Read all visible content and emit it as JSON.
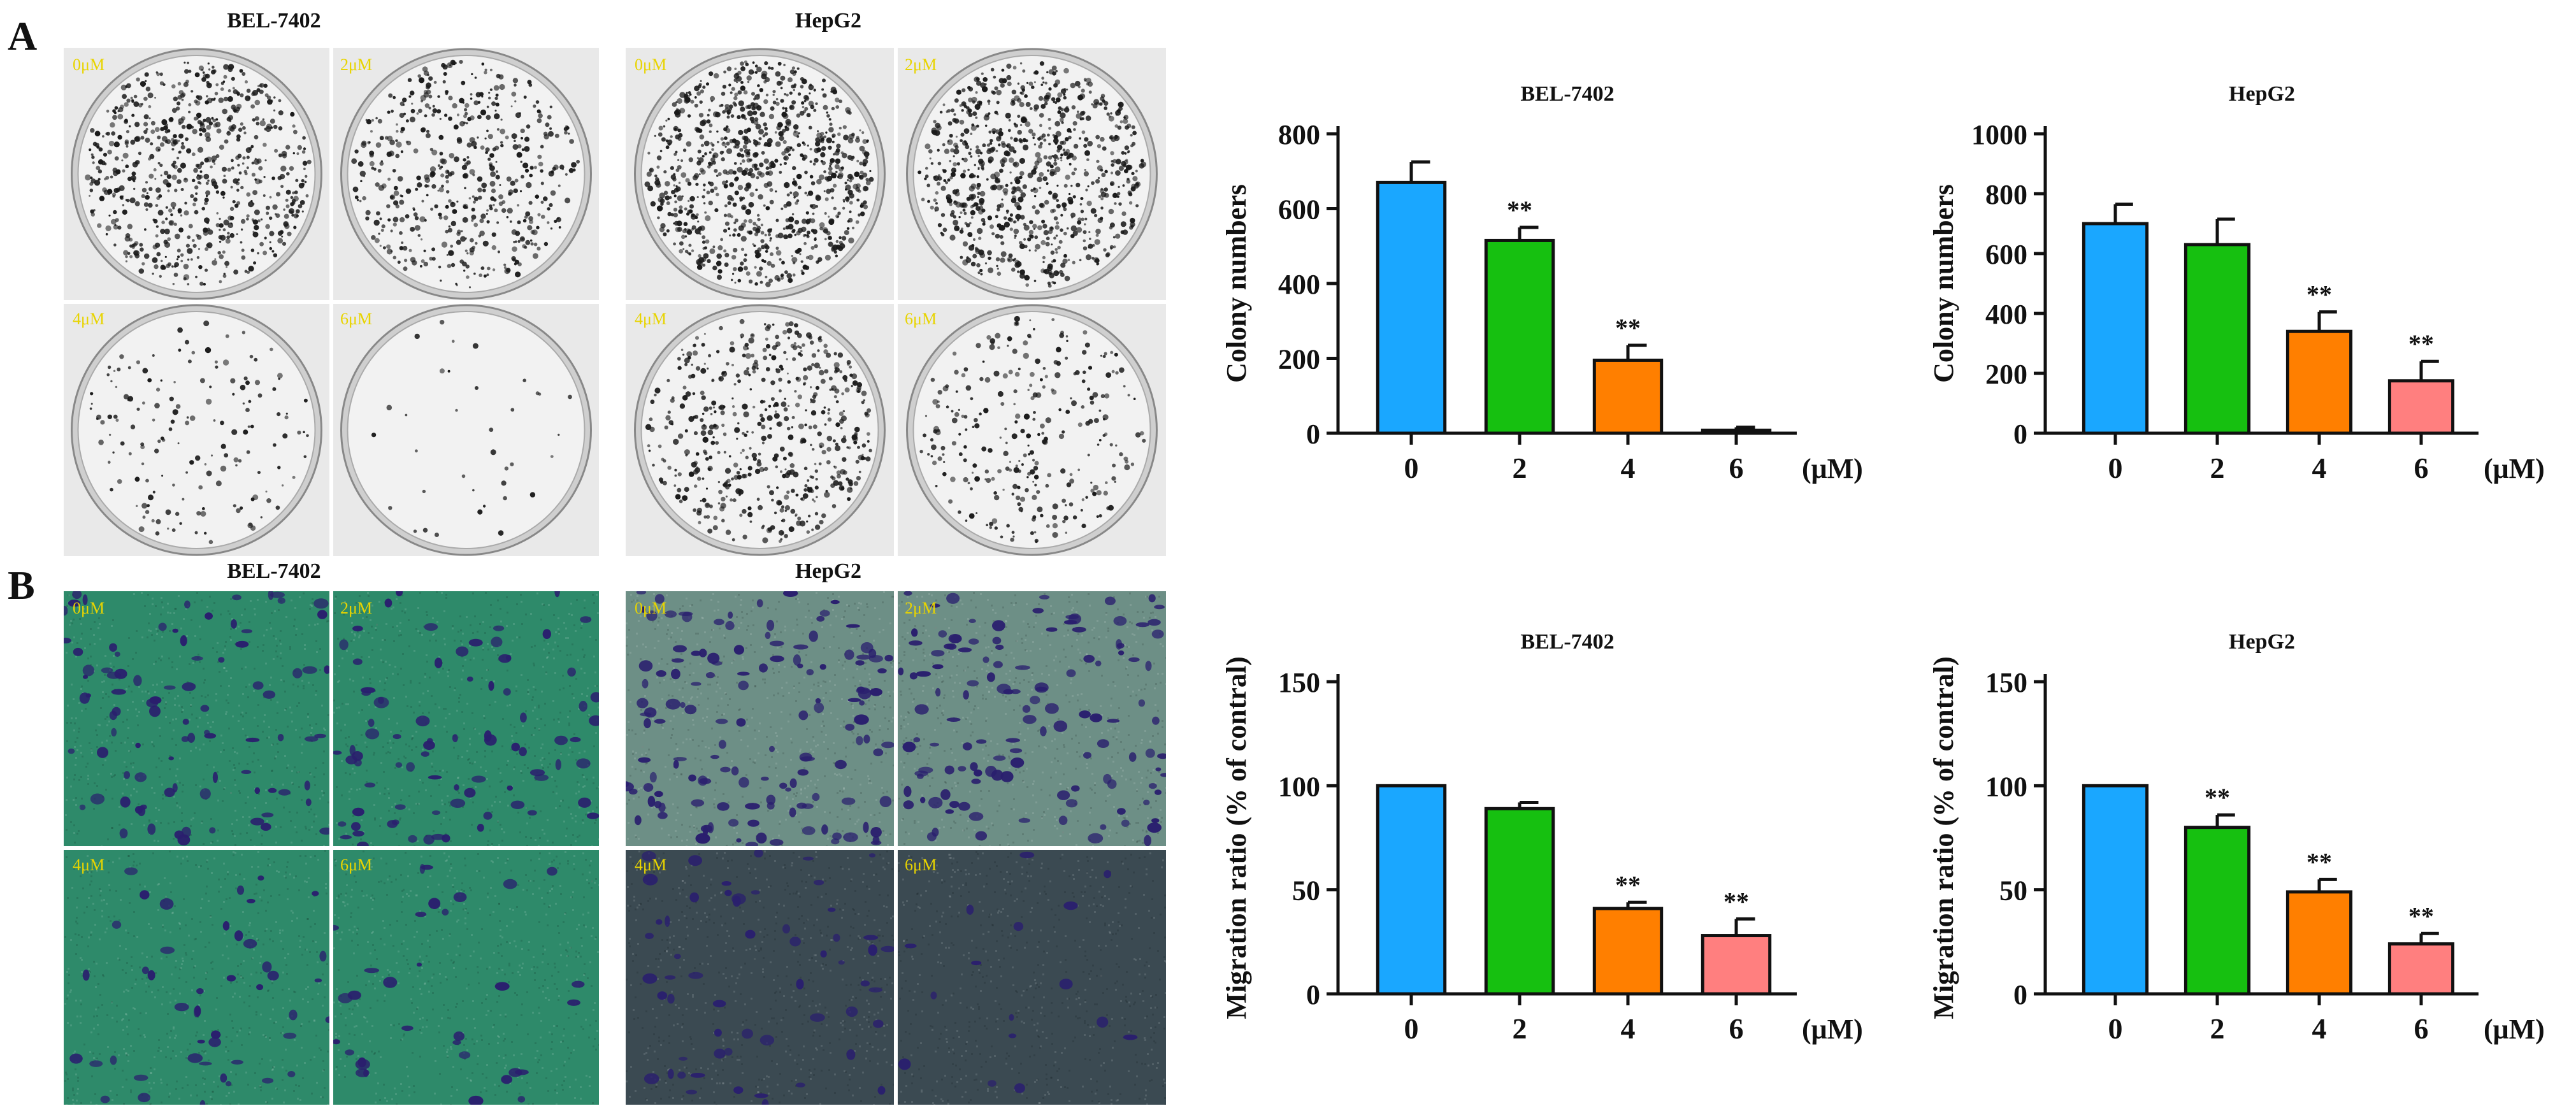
{
  "panel_labels": [
    "A",
    "B"
  ],
  "image_panels": [
    {
      "title": "BEL-7402",
      "style": "colony",
      "doses": [
        "0μM",
        "2μM",
        "4μM",
        "6μM"
      ],
      "density": [
        0.78,
        0.58,
        0.18,
        0.04
      ]
    },
    {
      "title": "HepG2",
      "style": "colony",
      "doses": [
        "0μM",
        "2μM",
        "4μM",
        "6μM"
      ],
      "density": [
        1.0,
        0.92,
        0.6,
        0.32
      ]
    },
    {
      "title": "BEL-7402",
      "style": "migration",
      "doses": [
        "0μM",
        "2μM",
        "4μM",
        "6μM"
      ],
      "density": [
        0.55,
        0.5,
        0.28,
        0.2
      ]
    },
    {
      "title": "HepG2",
      "style": "migration",
      "doses": [
        "0μM",
        "2μM",
        "4μM",
        "6μM"
      ],
      "density": [
        0.85,
        0.78,
        0.35,
        0.1
      ]
    }
  ],
  "colors": {
    "bar_0": "#1aa7ff",
    "bar_2": "#16c010",
    "bar_4": "#ff7f00",
    "bar_6": "#ff7f7f",
    "axis": "#111111",
    "colony_bg": "#e9e9e9",
    "migration_green": "#2e8a6a",
    "migration_dark": "#3b4a52",
    "stain": "#2a1f6e"
  },
  "chart_data": [
    {
      "type": "bar",
      "title": "BEL-7402",
      "categories": [
        "0",
        "2",
        "4",
        "6"
      ],
      "values": [
        670,
        515,
        195,
        8
      ],
      "errors": [
        55,
        35,
        40,
        8
      ],
      "significance": [
        "",
        "**",
        "**",
        ""
      ],
      "ylabel": "Colony numbers",
      "xunit": "(μM)",
      "ylim": [
        0,
        800
      ],
      "yticks": [
        0,
        200,
        400,
        600,
        800
      ]
    },
    {
      "type": "bar",
      "title": "HepG2",
      "categories": [
        "0",
        "2",
        "4",
        "6"
      ],
      "values": [
        700,
        630,
        340,
        175
      ],
      "errors": [
        65,
        85,
        65,
        65
      ],
      "significance": [
        "",
        "",
        "**",
        "**"
      ],
      "ylabel": "Colony numbers",
      "xunit": "(μM)",
      "ylim": [
        0,
        1000
      ],
      "yticks": [
        0,
        200,
        400,
        600,
        800,
        1000
      ]
    },
    {
      "type": "bar",
      "title": "BEL-7402",
      "categories": [
        "0",
        "2",
        "4",
        "6"
      ],
      "values": [
        100,
        89,
        41,
        28
      ],
      "errors": [
        0,
        3,
        3,
        8
      ],
      "significance": [
        "",
        "",
        "**",
        "**"
      ],
      "ylabel": "Migration ratio (% of contral)",
      "xunit": "(μM)",
      "ylim": [
        0,
        150
      ],
      "yticks": [
        0,
        50,
        100,
        150
      ]
    },
    {
      "type": "bar",
      "title": "HepG2",
      "categories": [
        "0",
        "2",
        "4",
        "6"
      ],
      "values": [
        100,
        80,
        49,
        24
      ],
      "errors": [
        0,
        6,
        6,
        5
      ],
      "significance": [
        "",
        "**",
        "**",
        "**"
      ],
      "ylabel": "Migration ratio (% of contral)",
      "xunit": "(μM)",
      "ylim": [
        0,
        150
      ],
      "yticks": [
        0,
        50,
        100,
        150
      ]
    }
  ]
}
